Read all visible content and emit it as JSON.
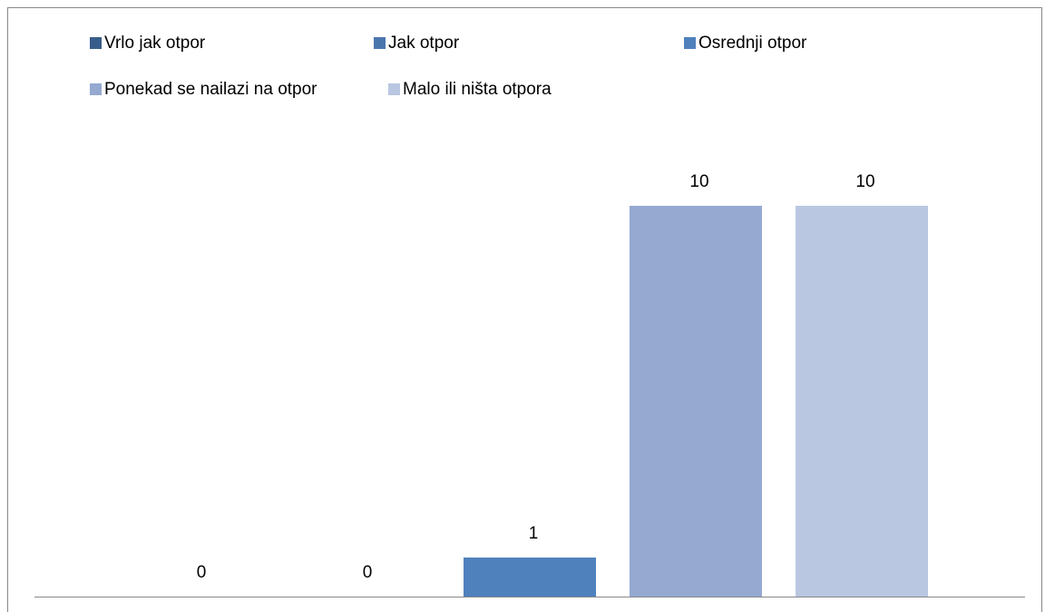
{
  "chart_data": {
    "type": "bar",
    "categories": [
      null
    ],
    "series": [
      {
        "name": "Vrlo jak otpor",
        "color": "#385d8a",
        "values": [
          0
        ]
      },
      {
        "name": "Jak otpor",
        "color": "#4a76ae",
        "values": [
          0
        ]
      },
      {
        "name": "Osrednji otpor",
        "color": "#4f81bd",
        "values": [
          1
        ]
      },
      {
        "name": "Ponekad se nailazi na otpor",
        "color": "#95a9d1",
        "values": [
          10
        ]
      },
      {
        "name": "Malo ili ništa otpora",
        "color": "#b9c7e1",
        "values": [
          10
        ]
      }
    ]
  }
}
